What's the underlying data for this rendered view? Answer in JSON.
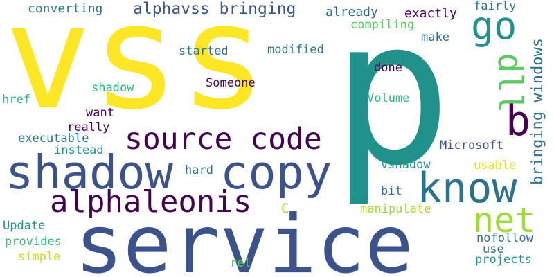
{
  "words": [
    {
      "text": "vss",
      "color": "#fde725"
    },
    {
      "text": "p",
      "color": "#21918c"
    },
    {
      "text": "service",
      "color": "#3b528b"
    },
    {
      "text": "shadow",
      "color": "#3b528b"
    },
    {
      "text": "copy",
      "color": "#3b528b"
    },
    {
      "text": "source code",
      "color": "#440154"
    },
    {
      "text": "alphaleonis",
      "color": "#440154"
    },
    {
      "text": "know",
      "color": "#2c728e"
    },
    {
      "text": "go",
      "color": "#21918c"
    },
    {
      "text": "net",
      "color": "#a0da39"
    },
    {
      "text": "b",
      "color": "#440154"
    },
    {
      "text": "dll",
      "color": "#5ec962"
    },
    {
      "text": "bringing windows",
      "color": "#2c728e"
    },
    {
      "text": "alphavss bringing",
      "color": "#3b528b"
    },
    {
      "text": "converting",
      "color": "#2c728e"
    },
    {
      "text": "already",
      "color": "#31688e"
    },
    {
      "text": "exactly",
      "color": "#440154"
    },
    {
      "text": "fairly",
      "color": "#2c728e"
    },
    {
      "text": "compiling",
      "color": "#5ec962"
    },
    {
      "text": "make",
      "color": "#31688e"
    },
    {
      "text": "started",
      "color": "#2c728e"
    },
    {
      "text": "modified",
      "color": "#2c728e"
    },
    {
      "text": "done",
      "color": "#440154"
    },
    {
      "text": "Someone",
      "color": "#440154"
    },
    {
      "text": "shadow",
      "color": "#35b779"
    },
    {
      "text": "href",
      "color": "#35b779"
    },
    {
      "text": "Volume",
      "color": "#35b779"
    },
    {
      "text": "want",
      "color": "#440154"
    },
    {
      "text": "really",
      "color": "#440154"
    },
    {
      "text": "executable",
      "color": "#2c728e"
    },
    {
      "text": "instead",
      "color": "#21918c"
    },
    {
      "text": "Microsoft",
      "color": "#3b528b"
    },
    {
      "text": "hard",
      "color": "#2c728e"
    },
    {
      "text": "vshadow",
      "color": "#21918c"
    },
    {
      "text": "usable",
      "color": "#dde318"
    },
    {
      "text": "bit",
      "color": "#2c728e"
    },
    {
      "text": "C",
      "color": "#a0da39"
    },
    {
      "text": "manipulate",
      "color": "#a0da39"
    },
    {
      "text": "Update",
      "color": "#21918c"
    },
    {
      "text": "provides",
      "color": "#35b779"
    },
    {
      "text": "simple",
      "color": "#c8e020"
    },
    {
      "text": "nofollow",
      "color": "#31688e"
    },
    {
      "text": "use",
      "color": "#31688e"
    },
    {
      "text": "projects",
      "color": "#21918c"
    },
    {
      "text": "rel",
      "color": "#5ec962"
    }
  ]
}
